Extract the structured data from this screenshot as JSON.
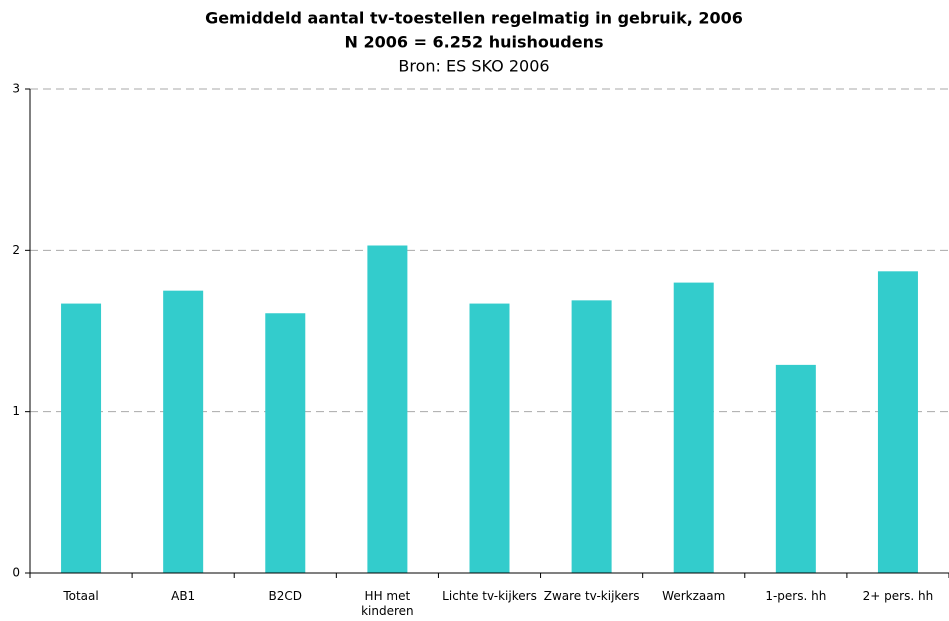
{
  "chart_data": {
    "type": "bar",
    "title": "Gemiddeld aantal tv-toestellen regelmatig in gebruik, 2006",
    "subtitle": "N 2006 = 6.252 huishoudens",
    "source": "Bron: ES SKO 2006",
    "categories": [
      "Totaal",
      "AB1",
      "B2CD",
      "HH met kinderen",
      "Lichte tv-kijkers",
      "Zware tv-kijkers",
      "Werkzaam",
      "1-pers. hh",
      "2+ pers. hh"
    ],
    "values": [
      1.67,
      1.75,
      1.61,
      2.03,
      1.67,
      1.69,
      1.8,
      1.29,
      1.87
    ],
    "color": "#33cccc",
    "ylim": [
      0,
      3
    ],
    "yticks": [
      0,
      1,
      2,
      3
    ],
    "grid": true
  }
}
